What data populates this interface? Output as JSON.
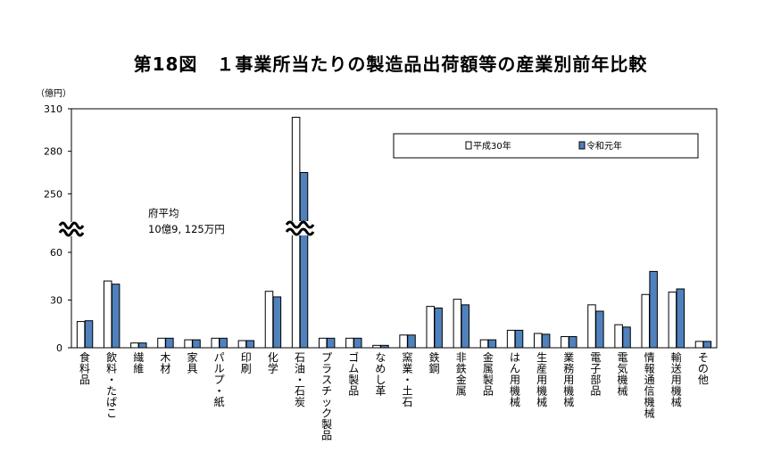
{
  "chart_data": {
    "type": "bar",
    "title": "第18図　１事業所当たりの製造品出荷額等の産業別前年比較",
    "unit": "（億円）",
    "ylabel": "",
    "xlabel": "",
    "y_ticks": [
      "0",
      "30",
      "60",
      "250",
      "280",
      "310"
    ],
    "axis_break": {
      "lower_max": 60,
      "upper_min": 220,
      "upper_max": 310
    },
    "ylim": [
      0,
      310
    ],
    "categories": [
      "食料品",
      "飲料・たばこ",
      "繊維",
      "木材",
      "家具",
      "パルプ・紙",
      "印刷",
      "化学",
      "石油・石炭",
      "プラスチック製品",
      "ゴム製品",
      "なめし革",
      "窯業・土石",
      "鉄鋼",
      "非鉄金属",
      "金属製品",
      "はん用機械",
      "生産用機械",
      "業務用機械",
      "電子部品",
      "電気機械",
      "情報通信機械",
      "輸送用機械",
      "その他"
    ],
    "series": [
      {
        "name": "平成30年",
        "color": "#ffffff",
        "values": [
          16.5,
          42,
          3,
          6,
          5,
          6,
          4.5,
          35.5,
          304,
          6,
          6,
          1.5,
          8,
          26,
          30.5,
          5,
          11,
          9,
          7,
          27,
          14.5,
          33.5,
          35,
          4
        ]
      },
      {
        "name": "令和元年",
        "color": "#4f81bd",
        "values": [
          17,
          40,
          3,
          6,
          5,
          6,
          4.5,
          32,
          265,
          6,
          6,
          1.5,
          8,
          25,
          27,
          5,
          11,
          8.5,
          7,
          23,
          13,
          48,
          37,
          4
        ]
      }
    ],
    "annotation": {
      "line1": "府平均",
      "line2": "10億9, 125万円"
    }
  }
}
